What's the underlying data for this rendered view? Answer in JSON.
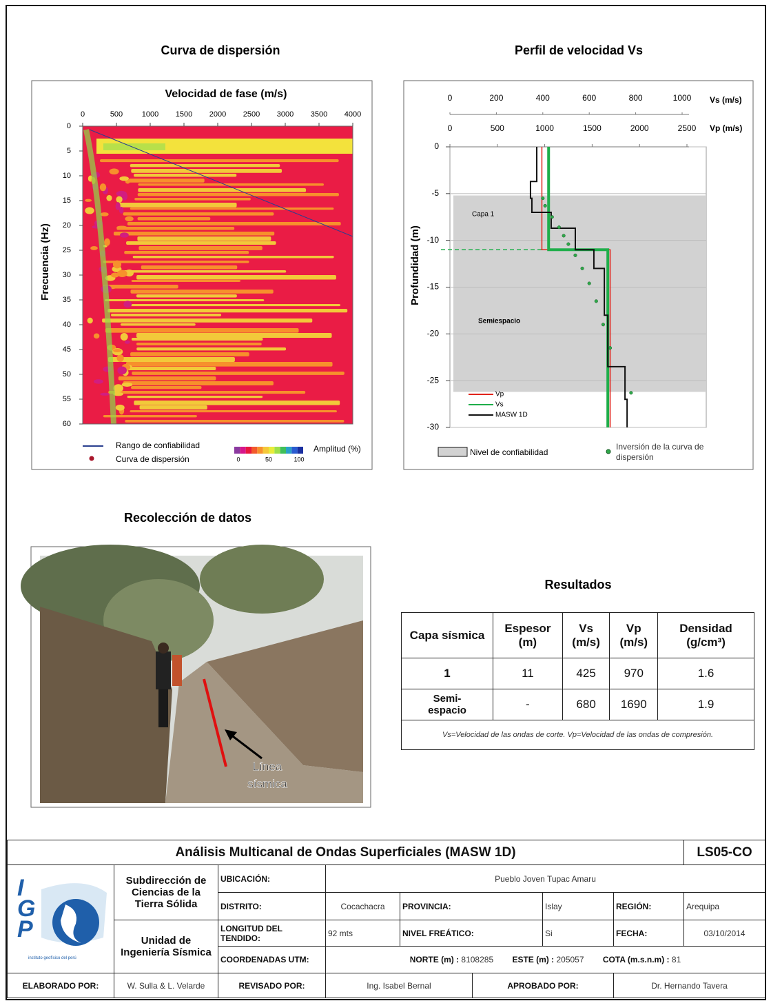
{
  "dispersion": {
    "title": "Curva de dispersión",
    "x_label": "Velocidad de fase (m/s)",
    "xticks": [
      0,
      500,
      1000,
      1500,
      2000,
      2500,
      3000,
      3500,
      4000
    ],
    "y_label": "Frecuencia (Hz)",
    "yticks": [
      0,
      5,
      10,
      15,
      20,
      25,
      30,
      35,
      40,
      45,
      50,
      55,
      60
    ],
    "legend_range": "Rango de confiabilidad",
    "legend_curve": "Curva de dispersión",
    "amplitude_label": "Amplitud (%)",
    "amplitude_ticks": [
      0,
      50,
      100
    ]
  },
  "profile": {
    "title": "Perfil de velocidad Vs",
    "vs_label": "Vs (m/s)",
    "vs_ticks": [
      0,
      200,
      400,
      600,
      800,
      1000
    ],
    "vp_label": "Vp (m/s)",
    "vp_ticks": [
      0,
      500,
      1000,
      1500,
      2000,
      2500
    ],
    "y_label": "Profundidad (m)",
    "yticks": [
      0,
      -5,
      -10,
      -15,
      -20,
      -25,
      -30
    ],
    "layer_label": "Capa 1",
    "halfspace_label": "Semiespacio",
    "reliability_depths": [
      -5.2,
      -26.2
    ],
    "series": [
      {
        "name": "Vp",
        "color": "#e0241b",
        "axis": "vp",
        "depths": [
          0,
          -11,
          -11,
          -30
        ],
        "values": [
          970,
          970,
          1690,
          1690
        ]
      },
      {
        "name": "Vs",
        "color": "#1fae4a",
        "axis": "vs",
        "depths": [
          0,
          -11,
          -11,
          -30
        ],
        "values": [
          425,
          425,
          680,
          680
        ]
      },
      {
        "name": "MASW 1D",
        "color": "#111111",
        "axis": "vs",
        "depths": [
          0,
          -3.7,
          -3.7,
          -5.5,
          -5.5,
          -7,
          -7,
          -8.7,
          -8.7,
          -11,
          -11,
          -13,
          -13,
          -18,
          -18,
          -23.5,
          -23.5,
          -27,
          -27,
          -30
        ],
        "values": [
          374,
          374,
          347,
          347,
          353,
          353,
          436,
          436,
          540,
          540,
          620,
          620,
          665,
          665,
          680,
          680,
          754,
          754,
          763,
          763
        ]
      }
    ],
    "inversion_depths": [
      -5.5,
      -6.3,
      -7.5,
      -8.6,
      -9.5,
      -10.4,
      -11.6,
      -13,
      -14.6,
      -16.5,
      -19,
      -21.5,
      -26.3
    ],
    "inversion_values": [
      400,
      410,
      440,
      470,
      490,
      510,
      540,
      570,
      600,
      630,
      660,
      690,
      780
    ],
    "legend_reliability": "Nivel de confiabilidad",
    "legend_inversion": "Inversión de la curva de dispersión"
  },
  "photo": {
    "title": "Recolección de datos",
    "label_lines": [
      "Línea",
      "sísmica"
    ]
  },
  "results": {
    "title": "Resultados",
    "header": [
      "Capa sísmica",
      "Espesor (m)",
      "Vs (m/s)",
      "Vp (m/s)",
      "Densidad (g/cm³)"
    ],
    "rows": [
      [
        "1",
        "11",
        "425",
        "970",
        "1.6"
      ],
      [
        "Semi-espacio",
        "-",
        "680",
        "1690",
        "1.9"
      ]
    ],
    "note": "Vs=Velocidad de las ondas de corte.   Vp=Velocidad de las ondas de compresión."
  },
  "footer": {
    "title": "Análisis Multicanal de Ondas Superficiales (MASW 1D)",
    "code": "LS05-CO",
    "logo_letters": [
      "I",
      "G",
      "P"
    ],
    "logo_caption": "instituto geofísico del perú",
    "org1": "Subdirección de Ciencias de la Tierra Sólida",
    "org2": "Unidad de Ingeniería Sísmica",
    "ubicacion_label": "UBICACIÓN:",
    "ubicacion": "Pueblo Joven Tupac Amaru",
    "distrito_label": "DISTRITO:",
    "distrito": "Cocachacra",
    "provincia_label": "PROVINCIA:",
    "provincia": "Islay",
    "region_label": "REGIÓN:",
    "region": "Arequipa",
    "longitud_label": "LONGITUD DEL TENDIDO:",
    "longitud": "92 mts",
    "nivel_label": "NIVEL FREÁTICO:",
    "nivel": "Si",
    "fecha_label": "FECHA:",
    "fecha": "03/10/2014",
    "coord_label": "COORDENADAS UTM:",
    "norte_label": "NORTE (m) :",
    "norte": "8108285",
    "este_label": "ESTE (m) :",
    "este": "205057",
    "cota_label": "COTA (m.s.n.m) :",
    "cota": "81",
    "elaborado_label": "ELABORADO POR:",
    "elaborado": "W. Sulla & L. Velarde",
    "revisado_label": "REVISADO POR:",
    "revisado": "Ing. Isabel Bernal",
    "aprobado_label": "APROBADO POR:",
    "aprobado": "Dr. Hernando Tavera"
  }
}
